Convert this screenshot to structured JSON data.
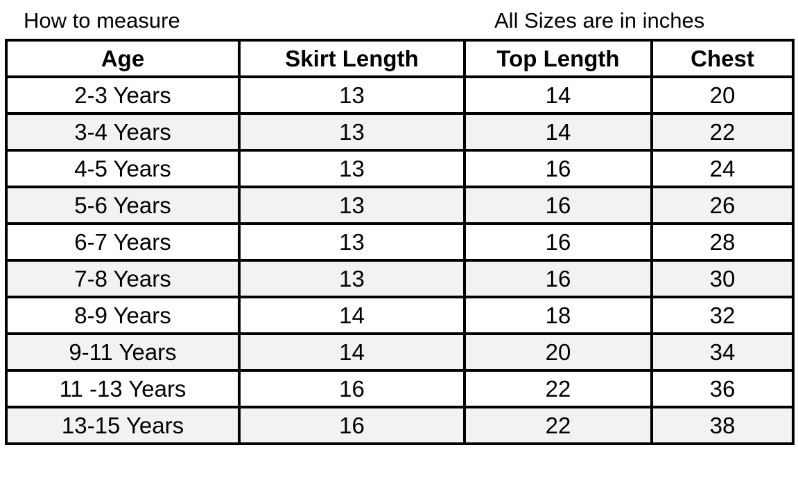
{
  "caption_left": "How to measure",
  "caption_right": "All Sizes are in inches",
  "headers": [
    "Age",
    "Skirt Length",
    "Top Length",
    "Chest"
  ],
  "rows": [
    [
      "2-3 Years",
      "13",
      "14",
      "20"
    ],
    [
      "3-4 Years",
      "13",
      "14",
      "22"
    ],
    [
      "4-5 Years",
      "13",
      "16",
      "24"
    ],
    [
      "5-6 Years",
      "13",
      "16",
      "26"
    ],
    [
      "6-7 Years",
      "13",
      "16",
      "28"
    ],
    [
      "7-8 Years",
      "13",
      "16",
      "30"
    ],
    [
      "8-9 Years",
      "14",
      "18",
      "32"
    ],
    [
      "9-11 Years",
      "14",
      "20",
      "34"
    ],
    [
      "11 -13 Years",
      "16",
      "22",
      "36"
    ],
    [
      "13-15 Years",
      "16",
      "22",
      "38"
    ]
  ],
  "colors": {
    "alt_row": "#f2f2f2",
    "border": "#000000"
  }
}
